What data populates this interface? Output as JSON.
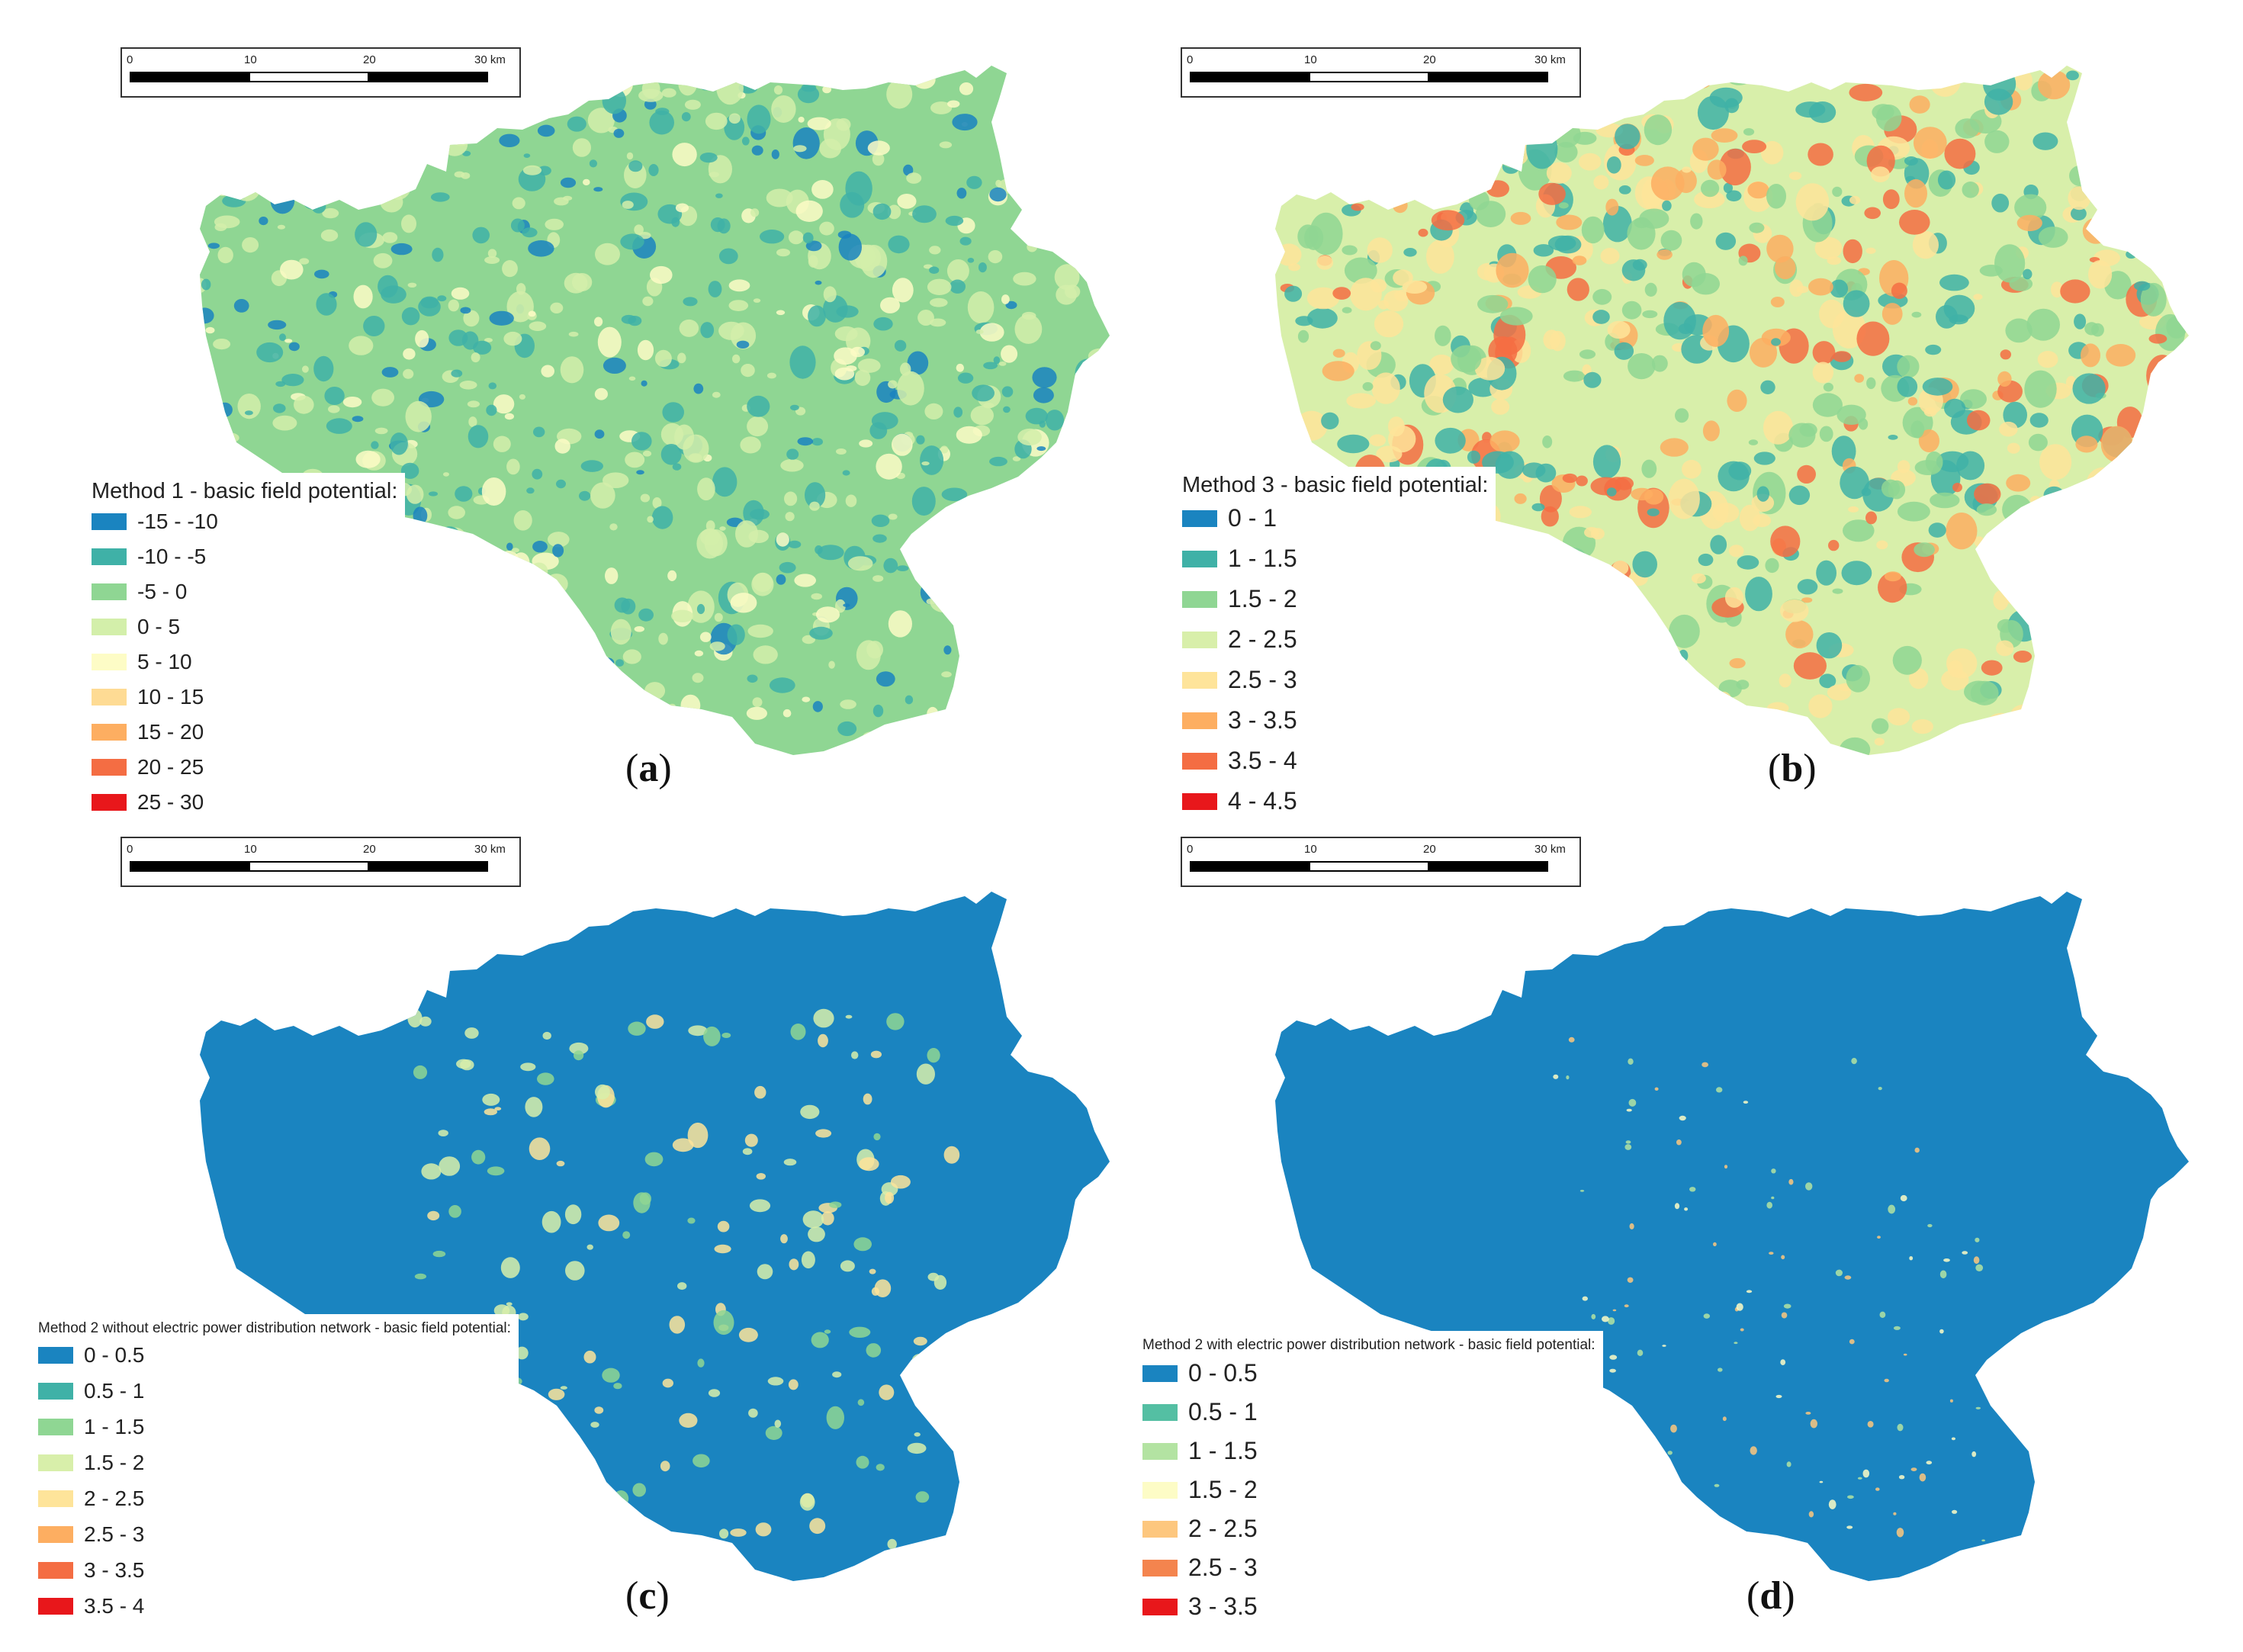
{
  "scale_bar": {
    "ticks": [
      "0",
      "10",
      "20",
      "30 km"
    ]
  },
  "panels": [
    {
      "id": "a",
      "label_open": "(",
      "label_letter": "a",
      "label_close": ")",
      "legend_title": "Method 1 - basic field potential:",
      "legend": [
        {
          "label": "-15 - -10",
          "color": "#1a84c0"
        },
        {
          "label": "-10 - -5",
          "color": "#3fb1a7"
        },
        {
          "label": "-5 - 0",
          "color": "#8fd693"
        },
        {
          "label": "0 - 5",
          "color": "#d3efaa"
        },
        {
          "label": "5 - 10",
          "color": "#fdfcc6"
        },
        {
          "label": "10 - 15",
          "color": "#fedb94"
        },
        {
          "label": "15 - 20",
          "color": "#fdae61"
        },
        {
          "label": "20 - 25",
          "color": "#f46d43"
        },
        {
          "label": "25 - 30",
          "color": "#e8171b"
        }
      ],
      "base_color": "#8fd693"
    },
    {
      "id": "b",
      "label_open": "(",
      "label_letter": "b",
      "label_close": ")",
      "legend_title": "Method 3 - basic field potential:",
      "legend": [
        {
          "label": "0 - 1",
          "color": "#1a84c0"
        },
        {
          "label": "1 - 1.5",
          "color": "#3fb1a7"
        },
        {
          "label": "1.5 - 2",
          "color": "#8fd693"
        },
        {
          "label": "2 - 2.5",
          "color": "#d8efaa"
        },
        {
          "label": "2.5 - 3",
          "color": "#fee49a"
        },
        {
          "label": "3 - 3.5",
          "color": "#fdae61"
        },
        {
          "label": "3.5 - 4",
          "color": "#f46d43"
        },
        {
          "label": "4 - 4.5",
          "color": "#e8171b"
        }
      ],
      "base_color": "#d8efaa"
    },
    {
      "id": "c",
      "label_open": "(",
      "label_letter": "c",
      "label_close": ")",
      "legend_title": "Method 2 without electric power distribution network - basic field potential:",
      "legend": [
        {
          "label": "0 - 0.5",
          "color": "#1a84c0"
        },
        {
          "label": "0.5 - 1",
          "color": "#3fb1a7"
        },
        {
          "label": "1 - 1.5",
          "color": "#8fd693"
        },
        {
          "label": "1.5 - 2",
          "color": "#d8efaa"
        },
        {
          "label": "2 - 2.5",
          "color": "#fee49a"
        },
        {
          "label": "2.5 - 3",
          "color": "#fdae61"
        },
        {
          "label": "3 - 3.5",
          "color": "#f46d43"
        },
        {
          "label": "3.5 - 4",
          "color": "#e8171b"
        }
      ],
      "base_color": "#1a84c0"
    },
    {
      "id": "d",
      "label_open": "(",
      "label_letter": "d",
      "label_close": ")",
      "legend_title": "Method 2 with electric power distribution network - basic field potential:",
      "legend": [
        {
          "label": "0 - 0.5",
          "color": "#1a84c0"
        },
        {
          "label": "0.5 - 1",
          "color": "#54bfa3"
        },
        {
          "label": "1 - 1.5",
          "color": "#b3e3a2"
        },
        {
          "label": "1.5 - 2",
          "color": "#fdfcc6"
        },
        {
          "label": "2 - 2.5",
          "color": "#fdc77e"
        },
        {
          "label": "2.5 - 3",
          "color": "#f4844e"
        },
        {
          "label": "3 - 3.5",
          "color": "#e8171b"
        }
      ],
      "base_color": "#1a84c0"
    }
  ]
}
